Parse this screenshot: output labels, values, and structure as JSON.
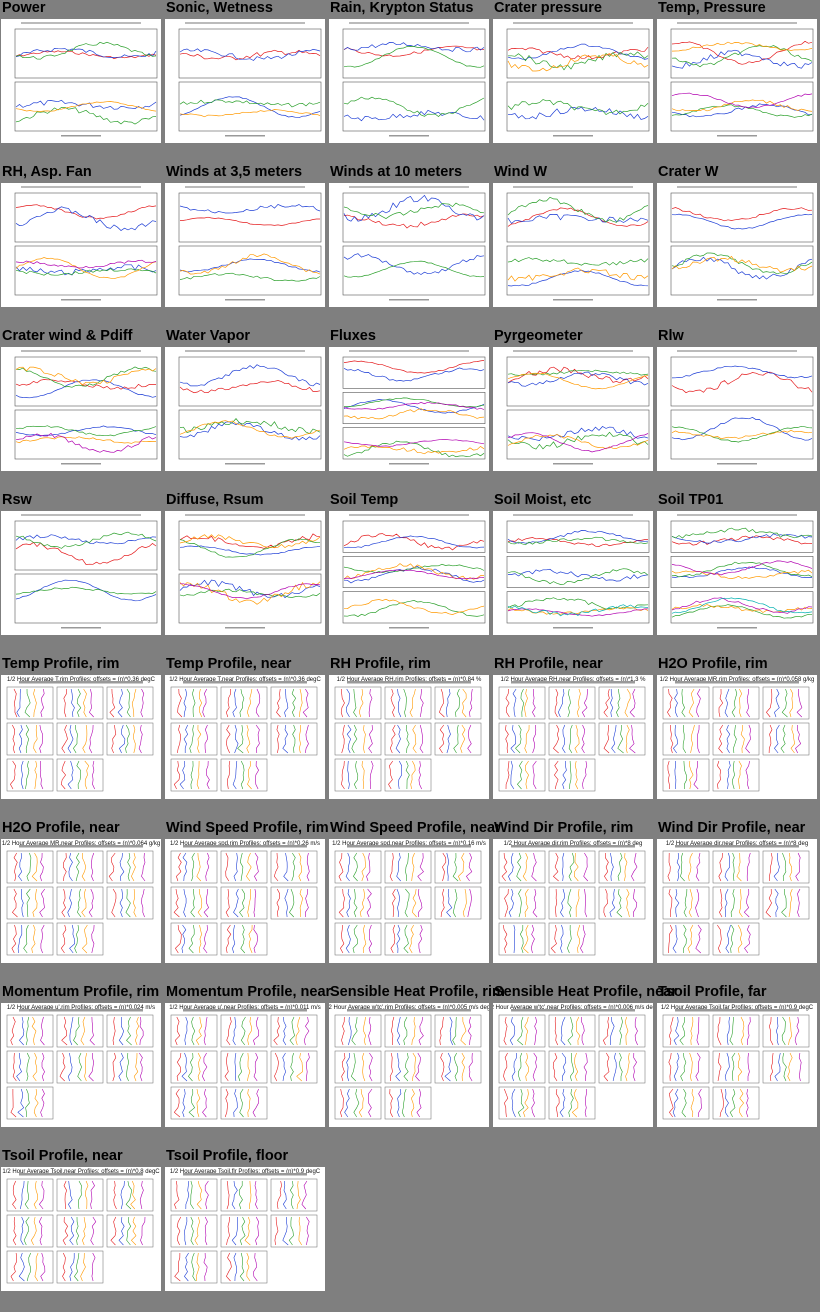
{
  "colors": {
    "background": "#7f7f7f",
    "thumb_background": "#ffffff",
    "series": [
      "#e41a1c",
      "#1f3fd6",
      "#2ca02c",
      "#ff9900",
      "#b000b0",
      "#00b0b0"
    ]
  },
  "thumbnails": [
    {
      "title": "Power",
      "kind": "timeseries",
      "panels": 2
    },
    {
      "title": "Sonic, Wetness",
      "kind": "timeseries",
      "panels": 2
    },
    {
      "title": "Rain, Krypton Status",
      "kind": "timeseries",
      "panels": 2
    },
    {
      "title": "Crater pressure",
      "kind": "timeseries",
      "panels": 2
    },
    {
      "title": "Temp, Pressure",
      "kind": "timeseries",
      "panels": 2
    },
    {
      "title": "RH, Asp. Fan",
      "kind": "timeseries",
      "panels": 2
    },
    {
      "title": "Winds at 3,5 meters",
      "kind": "timeseries",
      "panels": 2
    },
    {
      "title": "Winds at 10 meters",
      "kind": "timeseries",
      "panels": 2
    },
    {
      "title": "Wind W",
      "kind": "timeseries",
      "panels": 2
    },
    {
      "title": "Crater W",
      "kind": "timeseries",
      "panels": 2
    },
    {
      "title": "Crater wind & Pdiff",
      "kind": "timeseries",
      "panels": 2
    },
    {
      "title": "Water Vapor",
      "kind": "timeseries",
      "panels": 2
    },
    {
      "title": "Fluxes",
      "kind": "timeseries",
      "panels": 3
    },
    {
      "title": "Pyrgeometer",
      "kind": "timeseries",
      "panels": 2
    },
    {
      "title": "Rlw",
      "kind": "timeseries",
      "panels": 2
    },
    {
      "title": "Rsw",
      "kind": "timeseries",
      "panels": 2
    },
    {
      "title": "Diffuse, Rsum",
      "kind": "timeseries",
      "panels": 2
    },
    {
      "title": "Soil Temp",
      "kind": "timeseries",
      "panels": 3
    },
    {
      "title": "Soil Moist, etc",
      "kind": "timeseries",
      "panels": 3
    },
    {
      "title": "Soil TP01",
      "kind": "timeseries",
      "panels": 3
    },
    {
      "title": "Temp Profile, rim",
      "kind": "profile",
      "plot_title": "1/2 Hour Average T.rim Profiles; offsets = (n)*0.36 degC",
      "rows": [
        3,
        3,
        2
      ]
    },
    {
      "title": "Temp Profile, near",
      "kind": "profile",
      "plot_title": "1/2 Hour Average T.near Profiles; offsets = (n)*0.36 degC",
      "rows": [
        3,
        3,
        2
      ]
    },
    {
      "title": "RH Profile, rim",
      "kind": "profile",
      "plot_title": "1/2 Hour Average RH.rim Profiles; offsets = (n)*0.84 %",
      "rows": [
        3,
        3,
        2
      ]
    },
    {
      "title": "RH Profile, near",
      "kind": "profile",
      "plot_title": "1/2 Hour Average RH.near Profiles; offsets = (n)*1.3 %",
      "rows": [
        3,
        3,
        2
      ]
    },
    {
      "title": "H2O Profile, rim",
      "kind": "profile",
      "plot_title": "1/2 Hour Average MR.rim Profiles; offsets = (n)*0.058 g/kg",
      "rows": [
        3,
        3,
        2
      ]
    },
    {
      "title": "H2O Profile, near",
      "kind": "profile",
      "plot_title": "1/2 Hour Average MR.near Profiles; offsets = (n)*0.064 g/kg",
      "rows": [
        3,
        3,
        2
      ]
    },
    {
      "title": "Wind Speed Profile, rim",
      "kind": "profile",
      "plot_title": "1/2 Hour Average spd.rim Profiles; offsets = (n)*0.26 m/s",
      "rows": [
        3,
        3,
        2
      ]
    },
    {
      "title": "Wind Speed Profile, near",
      "kind": "profile",
      "plot_title": "1/2 Hour Average spd.near Profiles; offsets = (n)*0.16 m/s",
      "rows": [
        3,
        3,
        2
      ]
    },
    {
      "title": "Wind Dir Profile, rim",
      "kind": "profile",
      "plot_title": "1/2 Hour Average dir.rim Profiles; offsets = (n)*8 deg",
      "rows": [
        3,
        3,
        2
      ]
    },
    {
      "title": "Wind Dir Profile, near",
      "kind": "profile",
      "plot_title": "1/2 Hour Average dir.near Profiles; offsets = (n)*8 deg",
      "rows": [
        3,
        3,
        2
      ]
    },
    {
      "title": "Momentum Profile, rim",
      "kind": "profile",
      "plot_title": "1/2 Hour Average u'.rim Profiles; offsets = (n)*0.024 m/s",
      "rows": [
        3,
        3,
        1
      ]
    },
    {
      "title": "Momentum Profile, near",
      "kind": "profile",
      "plot_title": "1/2 Hour Average u'.near Profiles; offsets = (n)*0.011 m/s",
      "rows": [
        3,
        3,
        2
      ]
    },
    {
      "title": "Sensible Heat Profile, rim",
      "kind": "profile",
      "plot_title": "1/2 Hour Average w'tc'.rim Profiles; offsets = (n)*0.005 m/s degC",
      "rows": [
        3,
        3,
        2
      ]
    },
    {
      "title": "Sensible Heat Profile, near",
      "kind": "profile",
      "plot_title": "1/2 Hour Average w'tc'.near Profiles; offsets = (n)*0.006 m/s degC",
      "rows": [
        3,
        3,
        2
      ]
    },
    {
      "title": "Tsoil Profile, far",
      "kind": "profile",
      "plot_title": "1/2 Hour Average Tsoil.far Profiles; offsets = (n)*0.9 degC",
      "rows": [
        3,
        3,
        2
      ]
    },
    {
      "title": "Tsoil Profile, near",
      "kind": "profile",
      "plot_title": "1/2 Hour Average Tsoil.near Profiles; offsets = (n)*0.8 degC",
      "rows": [
        3,
        3,
        2
      ]
    },
    {
      "title": "Tsoil Profile, floor",
      "kind": "profile",
      "plot_title": "1/2 Hour Average Tsoil.flr Profiles; offsets = (n)*0.9 degC",
      "rows": [
        3,
        3,
        2
      ]
    }
  ]
}
